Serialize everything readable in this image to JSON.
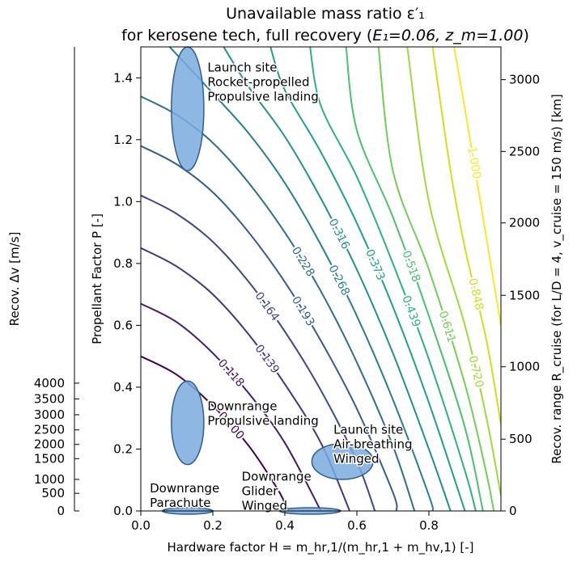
{
  "chart_data": {
    "type": "contour",
    "title_line1": "Unavailable mass ratio ε′₁",
    "title_line2_prefix": "for kerosene tech, full recovery (",
    "title_line2_params": "E₁=0.06, z_m=1.00",
    "title_line2_suffix": ")",
    "xlabel": "Hardware factor H = m_hr,1/(m_hr,1 + m_hv,1) [-]",
    "ylabel": "Propellant Factor P [-]",
    "y2label_left": "Recov. Δv [m/s]",
    "y2label_right": "Recov. range R_cruise (for L/D = 4, v_cruise = 150 m/s) [km]",
    "xlim": [
      0.0,
      1.0
    ],
    "ylim": [
      0.0,
      1.5
    ],
    "x_ticks": [
      "0.0",
      "0.2",
      "0.4",
      "0.6",
      "0.8"
    ],
    "y_ticks": [
      "0.0",
      "0.2",
      "0.4",
      "0.6",
      "0.8",
      "1.0",
      "1.2",
      "1.4"
    ],
    "dv_ticks": [
      {
        "label": "0",
        "p": 0.0
      },
      {
        "label": "500",
        "p": 0.057
      },
      {
        "label": "1000",
        "p": 0.102
      },
      {
        "label": "1500",
        "p": 0.169
      },
      {
        "label": "2000",
        "p": 0.215
      },
      {
        "label": "2500",
        "p": 0.262
      },
      {
        "label": "3000",
        "p": 0.311
      },
      {
        "label": "3500",
        "p": 0.362
      },
      {
        "label": "4000",
        "p": 0.413
      }
    ],
    "range_ticks": [
      {
        "label": "0",
        "p": 0.0
      },
      {
        "label": "500",
        "p": 0.232
      },
      {
        "label": "1000",
        "p": 0.466
      },
      {
        "label": "1500",
        "p": 0.697
      },
      {
        "label": "2000",
        "p": 0.931
      },
      {
        "label": "2500",
        "p": 1.162
      },
      {
        "label": "3000",
        "p": 1.394
      }
    ],
    "contours": [
      {
        "label": "0.100",
        "color": "#440154",
        "points": [
          [
            0.0,
            0.5
          ],
          [
            0.1,
            0.44
          ],
          [
            0.2,
            0.34
          ],
          [
            0.3,
            0.21
          ],
          [
            0.38,
            0.07
          ],
          [
            0.41,
            0.0
          ]
        ]
      },
      {
        "label": "0.118",
        "color": "#461b6e",
        "points": [
          [
            0.0,
            0.67
          ],
          [
            0.1,
            0.61
          ],
          [
            0.2,
            0.51
          ],
          [
            0.3,
            0.38
          ],
          [
            0.4,
            0.22
          ],
          [
            0.5,
            0.0
          ]
        ]
      },
      {
        "label": "0.139",
        "color": "#46327e",
        "points": [
          [
            0.0,
            0.85
          ],
          [
            0.1,
            0.79
          ],
          [
            0.2,
            0.7
          ],
          [
            0.3,
            0.57
          ],
          [
            0.4,
            0.41
          ],
          [
            0.5,
            0.22
          ],
          [
            0.58,
            0.0
          ]
        ]
      },
      {
        "label": "0.164",
        "color": "#3f4788",
        "points": [
          [
            0.0,
            1.02
          ],
          [
            0.1,
            0.96
          ],
          [
            0.2,
            0.87
          ],
          [
            0.3,
            0.74
          ],
          [
            0.4,
            0.58
          ],
          [
            0.5,
            0.39
          ],
          [
            0.6,
            0.16
          ],
          [
            0.65,
            0.0
          ]
        ]
      },
      {
        "label": "0.193",
        "color": "#365c8d",
        "points": [
          [
            0.0,
            1.18
          ],
          [
            0.1,
            1.12
          ],
          [
            0.2,
            1.03
          ],
          [
            0.3,
            0.9
          ],
          [
            0.4,
            0.74
          ],
          [
            0.5,
            0.55
          ],
          [
            0.6,
            0.33
          ],
          [
            0.7,
            0.06
          ],
          [
            0.71,
            0.0
          ]
        ]
      },
      {
        "label": "0.228",
        "color": "#2e6e8e",
        "points": [
          [
            0.0,
            1.34
          ],
          [
            0.1,
            1.28
          ],
          [
            0.2,
            1.19
          ],
          [
            0.3,
            1.06
          ],
          [
            0.4,
            0.9
          ],
          [
            0.5,
            0.71
          ],
          [
            0.6,
            0.48
          ],
          [
            0.7,
            0.21
          ],
          [
            0.76,
            0.0
          ]
        ]
      },
      {
        "label": "0.268",
        "color": "#277f8e",
        "points": [
          [
            0.08,
            1.5
          ],
          [
            0.2,
            1.35
          ],
          [
            0.3,
            1.22
          ],
          [
            0.4,
            1.06
          ],
          [
            0.5,
            0.86
          ],
          [
            0.6,
            0.63
          ],
          [
            0.7,
            0.36
          ],
          [
            0.8,
            0.05
          ],
          [
            0.81,
            0.0
          ]
        ]
      },
      {
        "label": "0.316",
        "color": "#21918c",
        "points": [
          [
            0.23,
            1.5
          ],
          [
            0.3,
            1.37
          ],
          [
            0.4,
            1.21
          ],
          [
            0.5,
            1.01
          ],
          [
            0.6,
            0.78
          ],
          [
            0.7,
            0.51
          ],
          [
            0.8,
            0.2
          ],
          [
            0.86,
            0.0
          ]
        ]
      },
      {
        "label": "0.373",
        "color": "#1fa187",
        "points": [
          [
            0.36,
            1.5
          ],
          [
            0.4,
            1.36
          ],
          [
            0.5,
            1.16
          ],
          [
            0.6,
            0.93
          ],
          [
            0.7,
            0.66
          ],
          [
            0.8,
            0.35
          ],
          [
            0.9,
            0.0
          ]
        ]
      },
      {
        "label": "0.439",
        "color": "#2db27d",
        "points": [
          [
            0.47,
            1.5
          ],
          [
            0.5,
            1.31
          ],
          [
            0.6,
            1.08
          ],
          [
            0.7,
            0.8
          ],
          [
            0.8,
            0.49
          ],
          [
            0.9,
            0.13
          ],
          [
            0.93,
            0.0
          ]
        ]
      },
      {
        "label": "0.518",
        "color": "#4ac16d",
        "points": [
          [
            0.57,
            1.5
          ],
          [
            0.6,
            1.23
          ],
          [
            0.7,
            0.95
          ],
          [
            0.8,
            0.63
          ],
          [
            0.9,
            0.27
          ],
          [
            0.95,
            0.0
          ]
        ]
      },
      {
        "label": "0.611",
        "color": "#71cf57",
        "points": [
          [
            0.66,
            1.5
          ],
          [
            0.7,
            1.1
          ],
          [
            0.8,
            0.78
          ],
          [
            0.9,
            0.41
          ],
          [
            0.96,
            0.12
          ],
          [
            0.98,
            0.0
          ]
        ]
      },
      {
        "label": "0.720",
        "color": "#9fda3a",
        "points": [
          [
            0.74,
            1.5
          ],
          [
            0.8,
            1.0
          ],
          [
            0.9,
            0.6
          ],
          [
            0.96,
            0.3
          ],
          [
            1.0,
            0.05
          ]
        ]
      },
      {
        "label": "0.848",
        "color": "#cfe11c",
        "points": [
          [
            0.81,
            1.5
          ],
          [
            0.86,
            1.1
          ],
          [
            0.9,
            0.85
          ],
          [
            0.96,
            0.55
          ],
          [
            1.0,
            0.28
          ]
        ]
      },
      {
        "label": "1.000",
        "color": "#fde725",
        "points": [
          [
            0.87,
            1.5
          ],
          [
            0.9,
            1.3
          ],
          [
            0.95,
            0.95
          ],
          [
            1.0,
            0.6
          ]
        ]
      }
    ],
    "regions": [
      {
        "name": "Launch site Rocket-propelled Propulsive landing",
        "lines": [
          "Launch site",
          "Rocket-propelled",
          "Propulsive landing"
        ],
        "cx": 0.13,
        "cy": 1.3,
        "rx": 0.045,
        "ry": 0.2
      },
      {
        "name": "Downrange Propulsive landing",
        "lines": [
          "Downrange",
          "Propulsive landing"
        ],
        "cx": 0.13,
        "cy": 0.285,
        "rx": 0.045,
        "ry": 0.135
      },
      {
        "name": "Launch site Air-breathing Winged",
        "lines": [
          "Launch site",
          "Air-breathing",
          "Winged"
        ],
        "cx": 0.56,
        "cy": 0.16,
        "rx": 0.085,
        "ry": 0.058
      },
      {
        "name": "Downrange Glider Winged",
        "lines": [
          "Downrange",
          "Glider",
          "Winged"
        ],
        "cx": 0.47,
        "cy": 0.0,
        "rx": 0.085,
        "ry": 0.008
      },
      {
        "name": "Downrange Parachute",
        "lines": [
          "Downrange",
          "Parachute"
        ],
        "cx": 0.13,
        "cy": 0.0,
        "rx": 0.07,
        "ry": 0.008
      }
    ],
    "region_color": "#7aaadf"
  }
}
